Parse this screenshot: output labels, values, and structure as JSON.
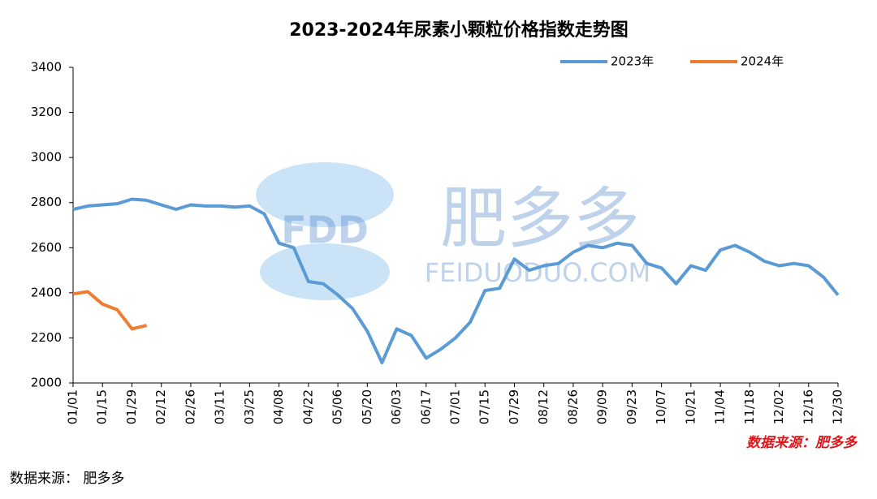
{
  "chart_data": {
    "type": "line",
    "title": "2023-2024年尿素小颗粒价格指数走势图",
    "categories": [
      "01/01",
      null,
      "01/15",
      null,
      "01/29",
      null,
      "02/12",
      null,
      "02/26",
      null,
      "03/11",
      null,
      "03/25",
      null,
      "04/08",
      null,
      "04/22",
      null,
      "05/06",
      null,
      "05/20",
      null,
      "06/03",
      null,
      "06/17",
      null,
      "07/01",
      null,
      "07/15",
      null,
      "07/29",
      null,
      "08/12",
      null,
      "08/26",
      null,
      "09/09",
      null,
      "09/23",
      null,
      "10/07",
      null,
      "10/21",
      null,
      "11/04",
      null,
      "11/18",
      null,
      "12/02",
      null,
      "12/16",
      null,
      "12/30"
    ],
    "series": [
      {
        "name": "2023年",
        "color": "#5b9bd5",
        "values": [
          2770,
          2785,
          2790,
          2795,
          2815,
          2810,
          2790,
          2770,
          2790,
          2785,
          2785,
          2780,
          2785,
          2750,
          2620,
          2600,
          2450,
          2440,
          2390,
          2330,
          2230,
          2090,
          2240,
          2210,
          2110,
          2150,
          2200,
          2270,
          2410,
          2420,
          2550,
          2500,
          2520,
          2530,
          2580,
          2610,
          2600,
          2620,
          2610,
          2530,
          2510,
          2440,
          2520,
          2500,
          2590,
          2610,
          2580,
          2540,
          2520,
          2530,
          2520,
          2470,
          2390
        ]
      },
      {
        "name": "2024年",
        "color": "#ed7d31",
        "values": [
          2395,
          2405,
          2350,
          2325,
          2240,
          2255,
          null,
          null,
          null,
          null,
          null,
          null,
          null,
          null,
          null,
          null,
          null,
          null,
          null,
          null,
          null,
          null,
          null,
          null,
          null,
          null,
          null,
          null,
          null,
          null,
          null,
          null,
          null,
          null,
          null,
          null,
          null,
          null,
          null,
          null,
          null,
          null,
          null,
          null,
          null,
          null,
          null,
          null,
          null,
          null,
          null,
          null,
          null
        ]
      }
    ],
    "ylim": [
      2000,
      3400
    ],
    "yticks": [
      2000,
      2200,
      2400,
      2600,
      2800,
      3000,
      3200,
      3400
    ],
    "grid": false,
    "legend": "top-right",
    "annotations": [
      "数据来源：肥多多",
      "数据来源： 肥多多",
      "FDD",
      "肥多多",
      "FEIDUODUO.COM"
    ]
  }
}
